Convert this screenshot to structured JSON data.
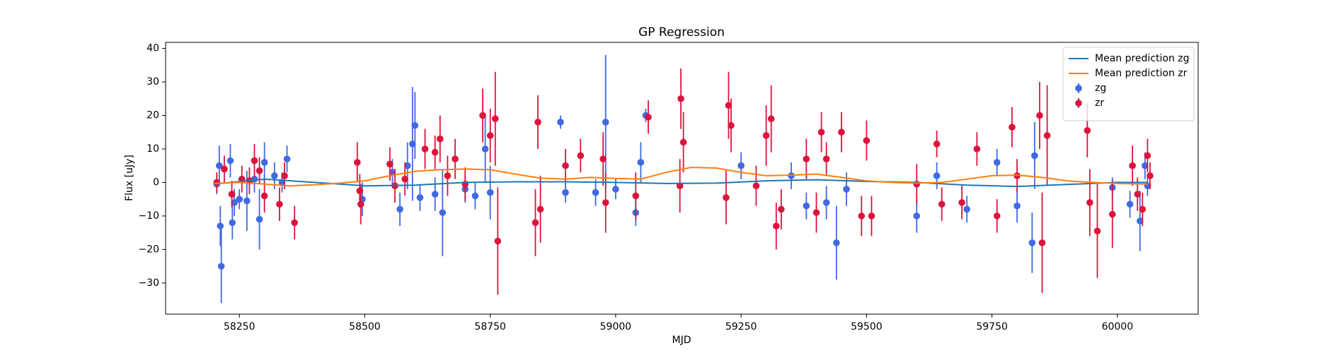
{
  "chart_data": {
    "type": "errorbar",
    "title": "GP Regression",
    "x_label": "MJD",
    "y_label": "Flux [uJy]",
    "xlim": [
      58103,
      60161
    ],
    "ylim": [
      -39.3,
      41.8
    ],
    "xticks": [
      58250,
      58500,
      58750,
      59000,
      59250,
      59500,
      59750,
      60000
    ],
    "yticks": [
      {
        "value": -30,
        "label": "−30"
      },
      {
        "value": -20,
        "label": "−20"
      },
      {
        "value": -10,
        "label": "−10"
      },
      0,
      10,
      20,
      30,
      40
    ],
    "legend": "upper right",
    "series": [
      {
        "name": "Mean prediction zg",
        "kind": "line",
        "color": "#1f77b4",
        "x": [
          58200,
          58300,
          58400,
          58500,
          58600,
          58700,
          58800,
          58900,
          59000,
          59100,
          59200,
          59300,
          59400,
          59500,
          59600,
          59700,
          59800,
          59900,
          60000,
          60060
        ],
        "values": [
          -0.5,
          1,
          0,
          -1,
          -0.8,
          0,
          0.2,
          0.2,
          0,
          -0.3,
          -0.2,
          0.5,
          0.8,
          0.3,
          0,
          -0.8,
          -1.2,
          -0.6,
          0,
          0
        ]
      },
      {
        "name": "Mean prediction zr",
        "kind": "line",
        "color": "#ff7f0e",
        "x": [
          58200,
          58250,
          58300,
          58350,
          58400,
          58450,
          58500,
          58550,
          58600,
          58650,
          58700,
          58750,
          58800,
          58850,
          58900,
          58950,
          59000,
          59050,
          59100,
          59150,
          59200,
          59250,
          59300,
          59350,
          59400,
          59450,
          59500,
          59550,
          59600,
          59650,
          59700,
          59750,
          59800,
          59850,
          59900,
          59950,
          60000,
          60060
        ],
        "values": [
          -0.3,
          0,
          -0.5,
          -1,
          -0.7,
          -0.2,
          0.5,
          2,
          3.3,
          3.8,
          4,
          3.8,
          2.5,
          1.3,
          1,
          1.5,
          1.2,
          1,
          3,
          4.5,
          4.3,
          3,
          2,
          2.2,
          2.5,
          1.5,
          0.5,
          0,
          -0.2,
          0,
          1,
          2,
          2.2,
          1.5,
          0.5,
          0,
          -0.3,
          -0.5
        ]
      },
      {
        "name": "zg",
        "kind": "errorbar",
        "color": "#4169e1",
        "x": [
          58205,
          58210,
          58212,
          58214,
          58232,
          58236,
          58240,
          58250,
          58265,
          58280,
          58290,
          58300,
          58320,
          58335,
          58345,
          58495,
          58555,
          58570,
          58585,
          58595,
          58600,
          58610,
          58640,
          58655,
          58700,
          58720,
          58740,
          58750,
          58890,
          58900,
          58960,
          58980,
          59000,
          59040,
          59050,
          59060,
          59250,
          59350,
          59380,
          59420,
          59440,
          59460,
          59600,
          59640,
          59700,
          59760,
          59800,
          59830,
          59835,
          59990,
          60025,
          60045,
          60055,
          60060
        ],
        "values": [
          -0.5,
          5,
          -13,
          -25,
          6.5,
          -12,
          -6,
          -5,
          -5.5,
          1,
          -11,
          6,
          2,
          0,
          7,
          -5,
          3,
          -8,
          5,
          11.5,
          17,
          -4.5,
          -3.5,
          -9,
          -2,
          -4,
          10,
          -3,
          18,
          -3,
          -3,
          18,
          -2,
          -9,
          6,
          20,
          5,
          2,
          -7,
          -6,
          -18,
          -2,
          -10,
          2,
          -8,
          6,
          -7,
          -18,
          8,
          -1.5,
          -6.5,
          -11.5,
          5,
          -1
        ],
        "errors": [
          3,
          6,
          6,
          11,
          5,
          5,
          4,
          3,
          9,
          4,
          9,
          6,
          4,
          3,
          4,
          5,
          4,
          5,
          7,
          17,
          10,
          4,
          5,
          13,
          4,
          4,
          10,
          8,
          2,
          3,
          4,
          20,
          3,
          4,
          6,
          2,
          4,
          4,
          4,
          5,
          11,
          5,
          5,
          4,
          4,
          4,
          5,
          9,
          10,
          3,
          4,
          9,
          4,
          3
        ]
      },
      {
        "name": "zr",
        "kind": "errorbar",
        "color": "#dc143c",
        "x": [
          58205,
          58220,
          58235,
          58255,
          58270,
          58280,
          58290,
          58300,
          58330,
          58340,
          58360,
          58485,
          58490,
          58492,
          58550,
          58560,
          58580,
          58620,
          58640,
          58650,
          58665,
          58680,
          58700,
          58735,
          58750,
          58760,
          58765,
          58840,
          58845,
          58850,
          58900,
          58930,
          58975,
          58980,
          59040,
          59065,
          59128,
          59130,
          59135,
          59220,
          59225,
          59230,
          59280,
          59300,
          59310,
          59320,
          59330,
          59380,
          59400,
          59410,
          59420,
          59450,
          59490,
          59500,
          59510,
          59600,
          59640,
          59650,
          59690,
          59720,
          59760,
          59790,
          59800,
          59845,
          59850,
          59860,
          59940,
          59945,
          59960,
          59990,
          60030,
          60040,
          60050,
          60060,
          60065
        ],
        "values": [
          0,
          4,
          -3.5,
          1,
          0.5,
          6.5,
          3.5,
          -4,
          -6.5,
          2,
          -12,
          6,
          -2.5,
          -6.5,
          5.5,
          -1,
          1,
          10,
          9,
          13,
          2,
          7,
          -0.5,
          20,
          14,
          19,
          -17.5,
          -12,
          18,
          -8,
          5,
          8,
          7,
          -6,
          -4,
          19.5,
          -1,
          25,
          12,
          -4.5,
          23,
          17,
          -1,
          14,
          19,
          -13,
          -8,
          7,
          -9,
          15,
          7,
          15,
          -10,
          12.5,
          -10,
          -0.5,
          11.5,
          -6.5,
          -6,
          10,
          -10,
          16.5,
          2,
          20,
          -18,
          14,
          15.5,
          -6,
          -14.5,
          -9.5,
          5,
          -3.5,
          -8,
          8,
          2
        ],
        "errors": [
          3,
          4,
          4,
          4,
          4,
          5,
          4,
          5,
          5,
          4,
          5,
          6,
          5,
          6,
          5,
          5,
          5,
          6,
          5,
          7,
          6,
          6,
          5,
          8,
          8,
          14,
          16,
          10,
          8,
          10,
          5,
          5,
          8,
          9,
          7,
          5,
          8,
          9,
          9,
          8,
          10,
          8,
          6,
          9,
          10,
          7,
          6,
          6,
          6,
          6,
          5,
          6,
          6,
          6,
          6,
          6,
          4,
          5,
          5,
          5,
          5,
          6,
          5,
          10,
          15,
          15,
          8,
          10,
          14,
          10,
          6,
          5,
          5,
          5,
          4
        ]
      }
    ]
  }
}
